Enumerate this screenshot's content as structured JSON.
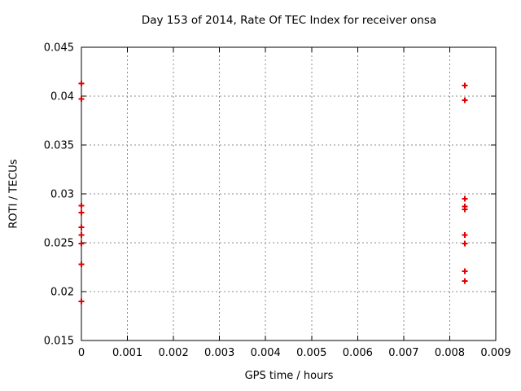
{
  "chart_data": {
    "type": "scatter",
    "title": "Day 153 of 2014, Rate Of TEC Index for receiver onsa",
    "xlabel": "GPS time / hours",
    "ylabel": "ROTI / TECUs",
    "xlim": [
      0,
      0.009
    ],
    "ylim": [
      0.015,
      0.045
    ],
    "x_tick_values": [
      0,
      0.001,
      0.002,
      0.003,
      0.004,
      0.005,
      0.006,
      0.007,
      0.008,
      0.009
    ],
    "x_tick_labels": [
      "0",
      "0.001",
      "0.002",
      "0.003",
      "0.004",
      "0.005",
      "0.006",
      "0.007",
      "0.008",
      "0.009"
    ],
    "y_tick_values": [
      0.015,
      0.02,
      0.025,
      0.03,
      0.035,
      0.04,
      0.045
    ],
    "y_tick_labels": [
      "0.015",
      "0.02",
      "0.025",
      "0.03",
      "0.035",
      "0.04",
      "0.045"
    ],
    "grid": true,
    "legend_position": "none",
    "series": [
      {
        "name": "ROTI",
        "marker": "plus",
        "color": "#e00000",
        "points": [
          [
            0,
            0.0413
          ],
          [
            0,
            0.0397
          ],
          [
            0,
            0.0288
          ],
          [
            0,
            0.0281
          ],
          [
            0,
            0.0266
          ],
          [
            0,
            0.0258
          ],
          [
            0,
            0.0249
          ],
          [
            0,
            0.0228
          ],
          [
            0,
            0.019
          ],
          [
            0.00833,
            0.0411
          ],
          [
            0.00833,
            0.0396
          ],
          [
            0.00833,
            0.0295
          ],
          [
            0.00833,
            0.0287
          ],
          [
            0.00833,
            0.0284
          ],
          [
            0.00833,
            0.0258
          ],
          [
            0.00833,
            0.0249
          ],
          [
            0.00833,
            0.0221
          ],
          [
            0.00833,
            0.0211
          ]
        ]
      }
    ],
    "colors": {
      "background": "#ffffff",
      "axis": "#000000",
      "grid": "#8c8c8c",
      "text": "#000000"
    }
  }
}
